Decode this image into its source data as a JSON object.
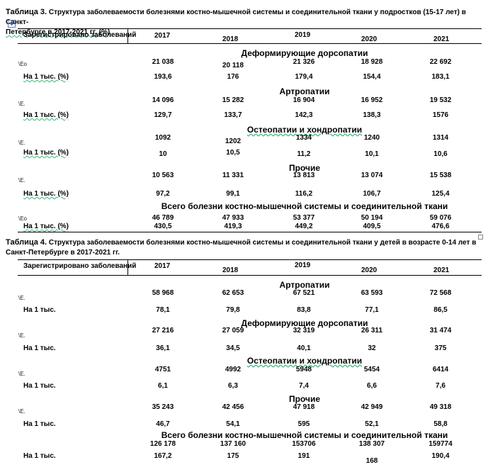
{
  "table3": {
    "label": "Таблица 3.",
    "caption_line1": " Структура заболеваемости болезнями костно-мышечной системы и соединительной ткани у подростков (15-17 лет) в Санкт-",
    "caption_line2": "Петербурге в 2017-2021 гг. (%)",
    "header": {
      "label": "Зарегистрировано заболеваний",
      "years": [
        "2017",
        "2018",
        "2019",
        "2020",
        "2021"
      ]
    },
    "sections": [
      {
        "title": "Деформирующие дорсопатии",
        "marker": "\\Ео",
        "abs": [
          "21 038",
          "20 118",
          "21 326",
          "18 928",
          "22 692"
        ],
        "per_label": "На 1 тыс. (%)",
        "per": [
          "193,6",
          "176",
          "179,4",
          "154,4",
          "183,1"
        ]
      },
      {
        "title": "Артропатии",
        "marker": "\\Е.",
        "abs": [
          "14 096",
          "15 282",
          "16 904",
          "16 952",
          "19 532"
        ],
        "per_label": "На 1 тыс. (%)",
        "per": [
          "129,7",
          "133,7",
          "142,3",
          "138,3",
          "1576"
        ]
      },
      {
        "title": "Остеопатии и хондропатии",
        "marker": "\\Е.",
        "abs": [
          "1092",
          "1202",
          "1334",
          "1240",
          "1314"
        ],
        "per_label": "На 1 тыс. (%)",
        "per": [
          "10",
          "10,5",
          "11,2",
          "10,1",
          "10,6"
        ]
      },
      {
        "title": "Прочие",
        "marker": "\\Е.",
        "abs": [
          "10 563",
          "11 331",
          "13 813",
          "13 074",
          "15 538"
        ],
        "per_label": "На 1 тыс. (%)",
        "per": [
          "97,2",
          "99,1",
          "116,2",
          "106,7",
          "125,4"
        ]
      },
      {
        "title": "Всего болезни костно-мышечной системы и соединительной ткани",
        "marker": "\\Ео",
        "abs": [
          "46 789",
          "47 933",
          "53 377",
          "50 194",
          "59 076"
        ],
        "per_label": "На 1 тыс. (%)",
        "per": [
          "430,5",
          "419,3",
          "449,2",
          "409,5",
          "476,6"
        ]
      }
    ]
  },
  "table4": {
    "label": "Таблица 4.",
    "caption_line1": " Структура заболеваемости болезнями костно-мышечной системы и соединительной ткани у детей в возрасте 0-14 лет в",
    "caption_line2": "Санкт-Петербурге в 2017-2021 гг.",
    "header": {
      "label": "Зарегистрировано заболеваний",
      "years": [
        "2017",
        "2018",
        "2019",
        "2020",
        "2021"
      ]
    },
    "sections": [
      {
        "title": "Артропатии",
        "marker": "\\Е.",
        "abs": [
          "58 968",
          "62 653",
          "67 521",
          "63 593",
          "72 568"
        ],
        "per_label": "На 1 тыс.",
        "per": [
          "78,1",
          "79,8",
          "83,8",
          "77,1",
          "86,5"
        ]
      },
      {
        "title": "Деформирующие дорсопатии",
        "marker": "\\Е.",
        "abs": [
          "27 216",
          "27 059",
          "32 319",
          "26 311",
          "31 474"
        ],
        "per_label": "На 1 тыс.",
        "per": [
          "36,1",
          "34,5",
          "40,1",
          "32",
          "375"
        ]
      },
      {
        "title": "Остеопатии и хондропатии",
        "marker": "\\Е.",
        "abs": [
          "4751",
          "4992",
          "5948",
          "5454",
          "6414"
        ],
        "per_label": "На 1 тыс.",
        "per": [
          "6,1",
          "6,3",
          "7,4",
          "6,6",
          "7,6"
        ]
      },
      {
        "title": "Прочие",
        "marker": "\\Е.",
        "abs": [
          "35 243",
          "42 456",
          "47 918",
          "42 949",
          "49 318"
        ],
        "per_label": "На 1 тыс.",
        "per": [
          "46,7",
          "54,1",
          "595",
          "52,1",
          "58,8"
        ]
      },
      {
        "title": "Всего болезни костно-мышечной системы и соединительной ткани",
        "marker": "",
        "abs": [
          "126 178",
          "137 160",
          "153706",
          "138 307",
          "159774"
        ],
        "per_label": "На 1 тыс.",
        "per": [
          "167,2",
          "175",
          "191",
          "168",
          "190,4"
        ]
      }
    ]
  }
}
